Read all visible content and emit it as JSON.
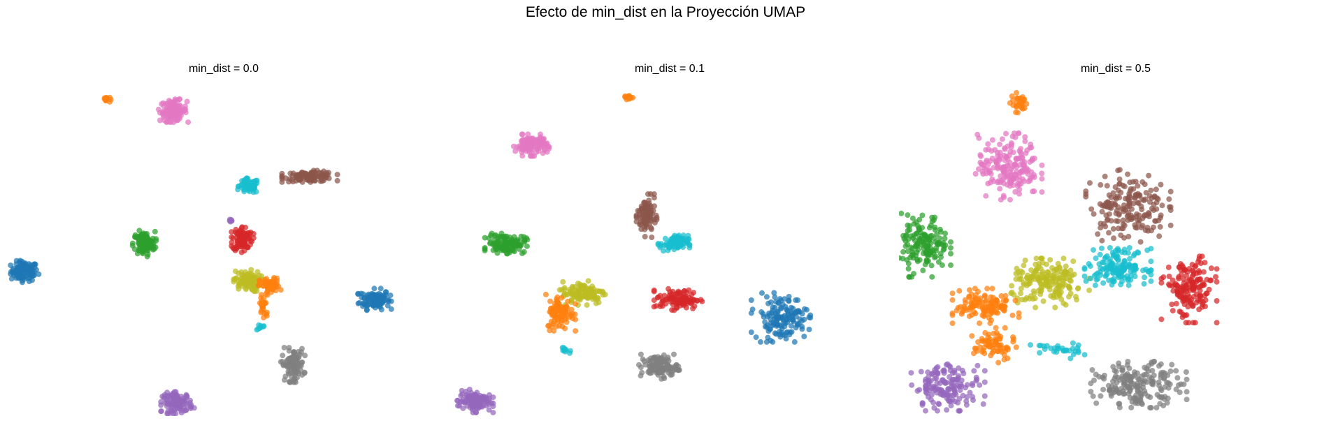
{
  "figure": {
    "title": "Efecto de min_dist en la Proyección UMAP"
  },
  "palette": {
    "0": "#1f77b4",
    "1": "#ff7f0e",
    "2": "#2ca02c",
    "3": "#d62728",
    "4": "#9467bd",
    "5": "#8c564b",
    "6": "#e377c2",
    "7": "#7f7f7f",
    "8": "#bcbd22",
    "9": "#17becf"
  },
  "chart_data": [
    {
      "type": "scatter",
      "title": "min_dist = 0.0",
      "axes_visible": false,
      "grid": false,
      "legend": "none",
      "xlim": [
        0,
        100
      ],
      "ylim": [
        0,
        100
      ],
      "clusters": [
        {
          "label": 0,
          "x": 2.5,
          "y": 43.0,
          "sx": 1.6,
          "sy": 1.5,
          "n": 110
        },
        {
          "label": 0,
          "x": 86.0,
          "y": 34.5,
          "sx": 1.8,
          "sy": 1.5,
          "n": 110
        },
        {
          "label": 1,
          "x": 22.0,
          "y": 95.5,
          "sx": 0.5,
          "sy": 0.5,
          "n": 12
        },
        {
          "label": 6,
          "x": 38.0,
          "y": 92.0,
          "sx": 1.6,
          "sy": 1.6,
          "n": 120
        },
        {
          "label": 9,
          "x": 56.0,
          "y": 69.0,
          "sx": 1.2,
          "sy": 1.1,
          "n": 70
        },
        {
          "label": 5,
          "x": 70.5,
          "y": 72.0,
          "sx": 3.0,
          "sy": 0.8,
          "n": 110
        },
        {
          "label": 2,
          "x": 31.0,
          "y": 51.5,
          "sx": 1.3,
          "sy": 1.8,
          "n": 110
        },
        {
          "label": 3,
          "x": 54.5,
          "y": 53.0,
          "sx": 1.2,
          "sy": 1.9,
          "n": 90
        },
        {
          "label": 4,
          "x": 51.5,
          "y": 58.5,
          "sx": 0.3,
          "sy": 0.3,
          "n": 6
        },
        {
          "label": 8,
          "x": 55.5,
          "y": 40.0,
          "sx": 1.6,
          "sy": 1.6,
          "n": 90
        },
        {
          "label": 1,
          "x": 61.0,
          "y": 38.5,
          "sx": 1.2,
          "sy": 1.2,
          "n": 60
        },
        {
          "label": 1,
          "x": 59.5,
          "y": 32.5,
          "sx": 0.6,
          "sy": 2.2,
          "n": 25
        },
        {
          "label": 9,
          "x": 59.0,
          "y": 26.0,
          "sx": 0.5,
          "sy": 0.6,
          "n": 8
        },
        {
          "label": 7,
          "x": 66.5,
          "y": 14.5,
          "sx": 1.3,
          "sy": 2.4,
          "n": 100
        },
        {
          "label": 4,
          "x": 39.0,
          "y": 3.0,
          "sx": 1.8,
          "sy": 1.5,
          "n": 110
        }
      ]
    },
    {
      "type": "scatter",
      "title": "min_dist = 0.1",
      "axes_visible": false,
      "grid": false,
      "legend": "none",
      "xlim": [
        0,
        100
      ],
      "ylim": [
        0,
        100
      ],
      "clusters": [
        {
          "label": 1,
          "x": 40.0,
          "y": 96.0,
          "sx": 0.6,
          "sy": 0.5,
          "n": 12
        },
        {
          "label": 6,
          "x": 17.0,
          "y": 81.5,
          "sx": 1.9,
          "sy": 1.5,
          "n": 120
        },
        {
          "label": 5,
          "x": 44.5,
          "y": 60.0,
          "sx": 1.1,
          "sy": 3.0,
          "n": 100
        },
        {
          "label": 2,
          "x": 11.0,
          "y": 51.5,
          "sx": 2.3,
          "sy": 1.4,
          "n": 120
        },
        {
          "label": 9,
          "x": 51.0,
          "y": 51.5,
          "sx": 1.7,
          "sy": 1.2,
          "n": 80
        },
        {
          "label": 3,
          "x": 52.0,
          "y": 34.5,
          "sx": 2.6,
          "sy": 1.5,
          "n": 100
        },
        {
          "label": 8,
          "x": 29.5,
          "y": 36.5,
          "sx": 2.6,
          "sy": 1.7,
          "n": 110
        },
        {
          "label": 1,
          "x": 24.0,
          "y": 30.5,
          "sx": 1.6,
          "sy": 2.6,
          "n": 90
        },
        {
          "label": 0,
          "x": 76.5,
          "y": 29.0,
          "sx": 3.2,
          "sy": 3.4,
          "n": 140
        },
        {
          "label": 9,
          "x": 25.5,
          "y": 19.0,
          "sx": 0.6,
          "sy": 0.6,
          "n": 10
        },
        {
          "label": 7,
          "x": 47.5,
          "y": 14.0,
          "sx": 2.2,
          "sy": 1.7,
          "n": 110
        },
        {
          "label": 4,
          "x": 3.5,
          "y": 3.5,
          "sx": 2.0,
          "sy": 1.6,
          "n": 110
        }
      ]
    },
    {
      "type": "scatter",
      "title": "min_dist = 0.5",
      "axes_visible": false,
      "grid": false,
      "legend": "none",
      "xlim": [
        0,
        100
      ],
      "ylim": [
        0,
        100
      ],
      "clusters": [
        {
          "label": 1,
          "x": 27.0,
          "y": 94.5,
          "sx": 1.0,
          "sy": 1.4,
          "n": 30
        },
        {
          "label": 6,
          "x": 24.5,
          "y": 75.0,
          "sx": 3.6,
          "sy": 4.6,
          "n": 190
        },
        {
          "label": 5,
          "x": 53.0,
          "y": 63.0,
          "sx": 4.6,
          "sy": 5.0,
          "n": 180
        },
        {
          "label": 2,
          "x": 4.5,
          "y": 51.0,
          "sx": 2.8,
          "sy": 4.4,
          "n": 150
        },
        {
          "label": 8,
          "x": 34.0,
          "y": 39.5,
          "sx": 4.4,
          "sy": 3.4,
          "n": 180
        },
        {
          "label": 9,
          "x": 50.5,
          "y": 44.5,
          "sx": 3.6,
          "sy": 2.6,
          "n": 150
        },
        {
          "label": 3,
          "x": 67.5,
          "y": 37.5,
          "sx": 3.0,
          "sy": 4.6,
          "n": 160
        },
        {
          "label": 1,
          "x": 19.0,
          "y": 32.5,
          "sx": 3.6,
          "sy": 2.4,
          "n": 120
        },
        {
          "label": 1,
          "x": 21.0,
          "y": 20.5,
          "sx": 2.4,
          "sy": 2.4,
          "n": 70
        },
        {
          "label": 9,
          "x": 36.0,
          "y": 19.0,
          "sx": 3.0,
          "sy": 1.2,
          "n": 30
        },
        {
          "label": 7,
          "x": 55.5,
          "y": 8.5,
          "sx": 5.2,
          "sy": 3.2,
          "n": 190
        },
        {
          "label": 4,
          "x": 10.0,
          "y": 8.0,
          "sx": 4.0,
          "sy": 3.4,
          "n": 150
        }
      ]
    }
  ]
}
